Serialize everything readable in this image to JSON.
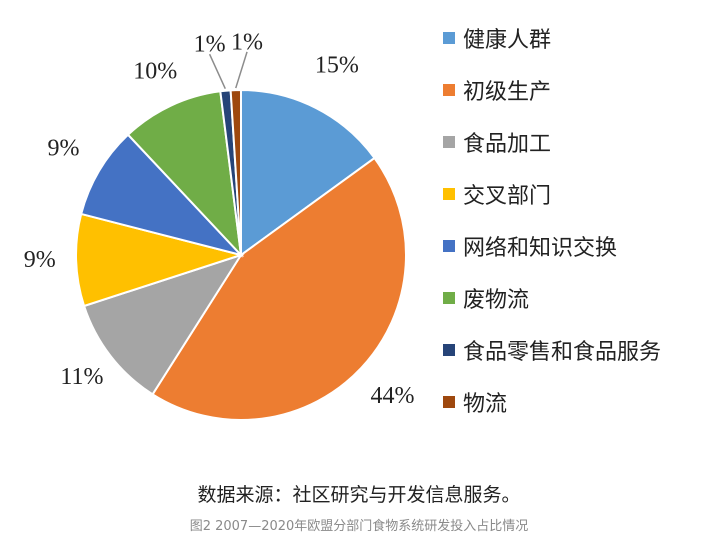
{
  "chart_data": {
    "type": "pie",
    "categories": [
      "健康人群",
      "初级生产",
      "食品加工",
      "交叉部门",
      "网络和知识交换",
      "废物流",
      "食品零售和食品服务",
      "物流"
    ],
    "values": [
      15,
      44,
      11,
      9,
      9,
      10,
      1,
      1
    ],
    "labels": [
      "15%",
      "44%",
      "11%",
      "9%",
      "9%",
      "10%",
      "1%",
      "1%"
    ],
    "colors": [
      "#5B9BD5",
      "#ED7D31",
      "#A5A5A5",
      "#FFC000",
      "#4472C4",
      "#70AD47",
      "#264478",
      "#9E480E"
    ],
    "legend_position": "right"
  },
  "source_text": "数据来源：社区研究与开发信息服务。",
  "caption": "图2 2007—2020年欧盟分部门食物系统研发投入占比情况"
}
